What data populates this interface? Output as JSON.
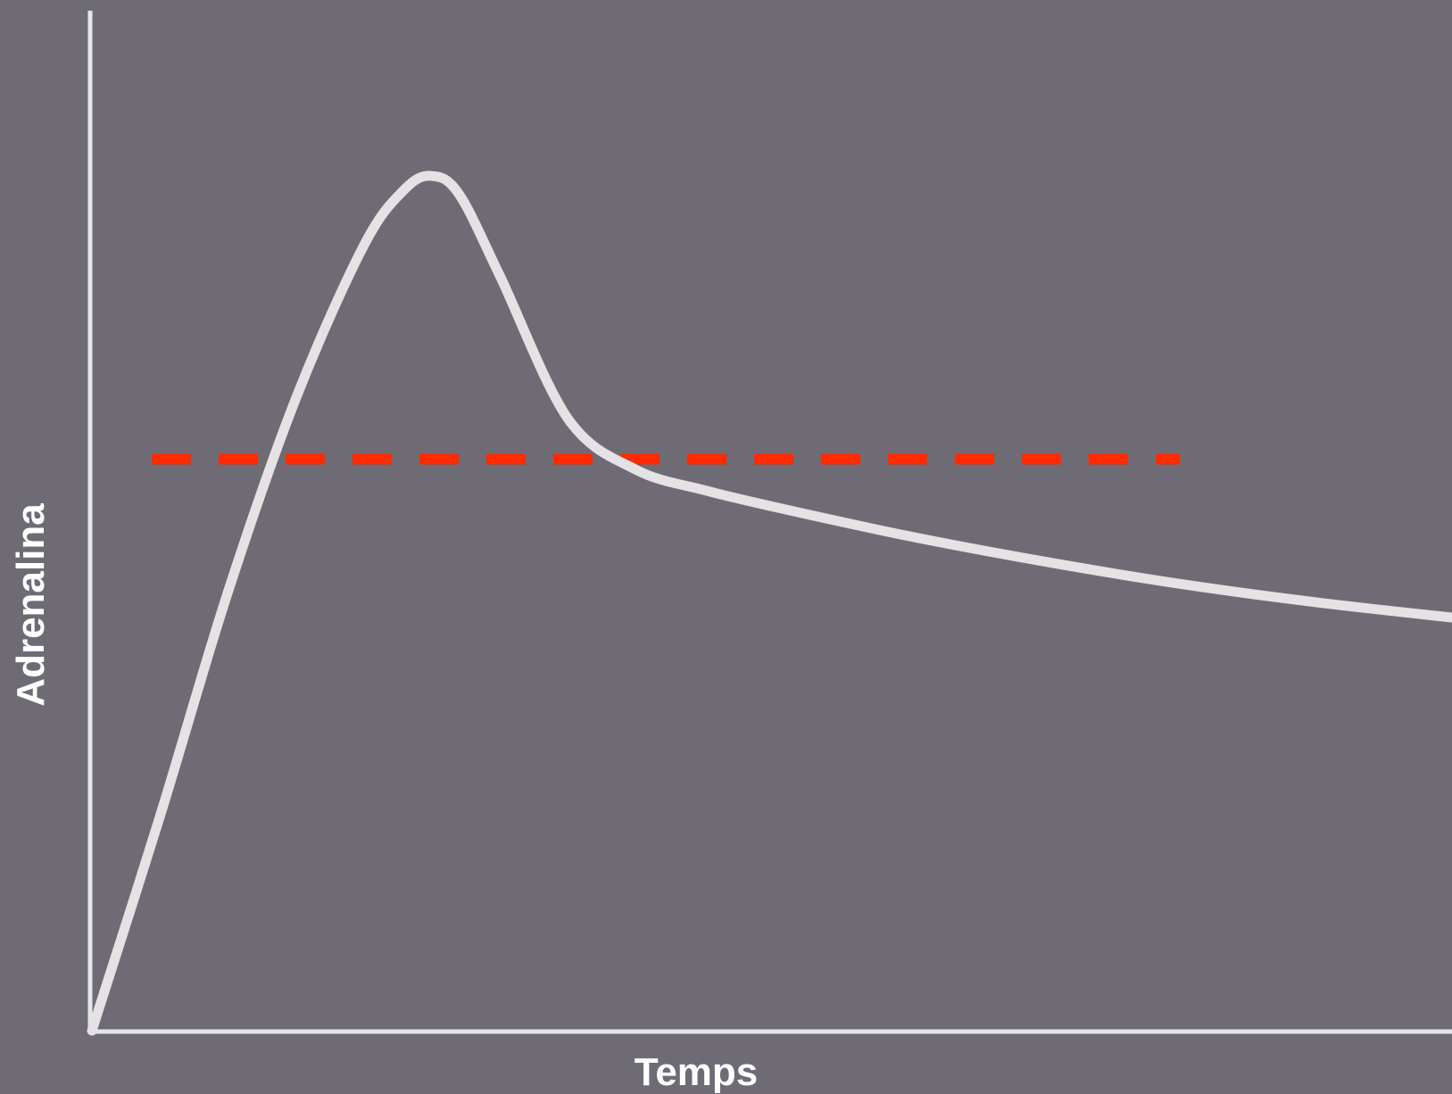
{
  "chart_data": {
    "type": "line",
    "title": "",
    "xlabel": "Temps",
    "ylabel": "Adrenalina",
    "xlim": [
      0,
      100
    ],
    "ylim": [
      0,
      100
    ],
    "grid": false,
    "colors": {
      "background": "#6f6b75",
      "axes": "#e6e6e6",
      "curve": "#e4e2e4",
      "threshold": "#ff2a00"
    },
    "series": [
      {
        "points": [
          [
            0,
            0
          ],
          [
            5,
            21
          ],
          [
            10,
            43
          ],
          [
            15,
            62
          ],
          [
            20,
            77
          ],
          [
            23,
            82.5
          ],
          [
            25,
            83.8
          ],
          [
            27,
            82
          ],
          [
            30,
            74
          ],
          [
            35,
            60
          ],
          [
            40,
            55
          ],
          [
            45,
            53
          ],
          [
            50,
            51.4
          ],
          [
            60,
            48.5
          ],
          [
            70,
            46
          ],
          [
            80,
            43.8
          ],
          [
            90,
            42
          ],
          [
            100,
            40.5
          ]
        ]
      }
    ],
    "reference_lines": [
      {
        "y": 56,
        "x_range": [
          4.4,
          80
        ],
        "style": "dashed"
      }
    ]
  }
}
